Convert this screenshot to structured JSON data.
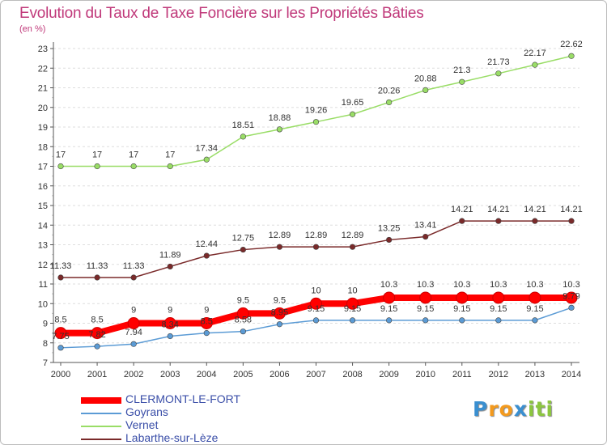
{
  "header": {
    "title": "Evolution du Taux de Taxe Foncière sur les Propriétés Bâties",
    "unit": "(en %)"
  },
  "brand": {
    "logo_letters": [
      "P",
      "r",
      "o",
      "x",
      "i",
      "t",
      "i"
    ],
    "logo_colors": [
      "#3a8fd0",
      "#f39a1e",
      "#f39a1e",
      "#3a8fd0",
      "#8cc63f",
      "#8cc63f",
      "#8cc63f"
    ]
  },
  "colors": {
    "title": "#c0397a",
    "axis_text": "#333333",
    "grid": "#dddddd",
    "axis": "#555555"
  },
  "chart_data": {
    "type": "line",
    "title": "Evolution du Taux de Taxe Foncière sur les Propriétés Bâties",
    "ylabel": "(en %)",
    "x": [
      "2000",
      "2001",
      "2002",
      "2003",
      "2004",
      "2005",
      "2006",
      "2007",
      "2008",
      "2009",
      "2010",
      "2011",
      "2012",
      "2013",
      "2014"
    ],
    "ylim": [
      7,
      23
    ],
    "yticks": [
      7,
      8,
      9,
      10,
      11,
      12,
      13,
      14,
      15,
      16,
      17,
      18,
      19,
      20,
      21,
      22,
      23
    ],
    "grid": "horizontal-dashed",
    "legend_position": "bottom-left",
    "series": [
      {
        "name": "CLERMONT-LE-FORT",
        "color": "#ff0000",
        "values": [
          8.5,
          8.5,
          9,
          9,
          9,
          9.5,
          9.5,
          10,
          10,
          10.3,
          10.3,
          10.3,
          10.3,
          10.3,
          10.3
        ],
        "labels": [
          "8.5",
          "8.5",
          "9",
          "9",
          "9",
          "9.5",
          "9.5",
          "10",
          "10",
          "10.3",
          "10.3",
          "10.3",
          "10.3",
          "10.3",
          "10.3"
        ]
      },
      {
        "name": "Goyrans",
        "color": "#5b9bd5",
        "values": [
          7.75,
          7.82,
          7.94,
          8.34,
          8.5,
          8.58,
          8.95,
          9.15,
          9.15,
          9.15,
          9.15,
          9.15,
          9.15,
          9.15,
          9.79
        ],
        "labels": [
          "7.75",
          "7.82",
          "7.94",
          "8.34",
          "8.5",
          "8.58",
          "8.95",
          "9.15",
          "9.15",
          "9.15",
          "9.15",
          "9.15",
          "9.15",
          "9.15",
          "9.79"
        ]
      },
      {
        "name": "Vernet",
        "color": "#99dd66",
        "values": [
          17,
          17,
          17,
          17,
          17.34,
          18.51,
          18.88,
          19.26,
          19.65,
          20.26,
          20.88,
          21.3,
          21.73,
          22.17,
          22.62
        ],
        "labels": [
          "17",
          "17",
          "17",
          "17",
          "17.34",
          "18.51",
          "18.88",
          "19.26",
          "19.65",
          "20.26",
          "20.88",
          "21.3",
          "21.73",
          "22.17",
          "22.62"
        ]
      },
      {
        "name": "Labarthe-sur-Lèze",
        "color": "#7a2a2a",
        "values": [
          11.33,
          11.33,
          11.33,
          11.89,
          12.44,
          12.75,
          12.89,
          12.89,
          12.89,
          13.25,
          13.41,
          14.21,
          14.21,
          14.21,
          14.21
        ],
        "labels": [
          "11.33",
          "11.33",
          "11.33",
          "11.89",
          "12.44",
          "12.75",
          "12.89",
          "12.89",
          "12.89",
          "13.25",
          "13.41",
          "14.21",
          "14.21",
          "14.21",
          "14.21"
        ]
      }
    ]
  }
}
